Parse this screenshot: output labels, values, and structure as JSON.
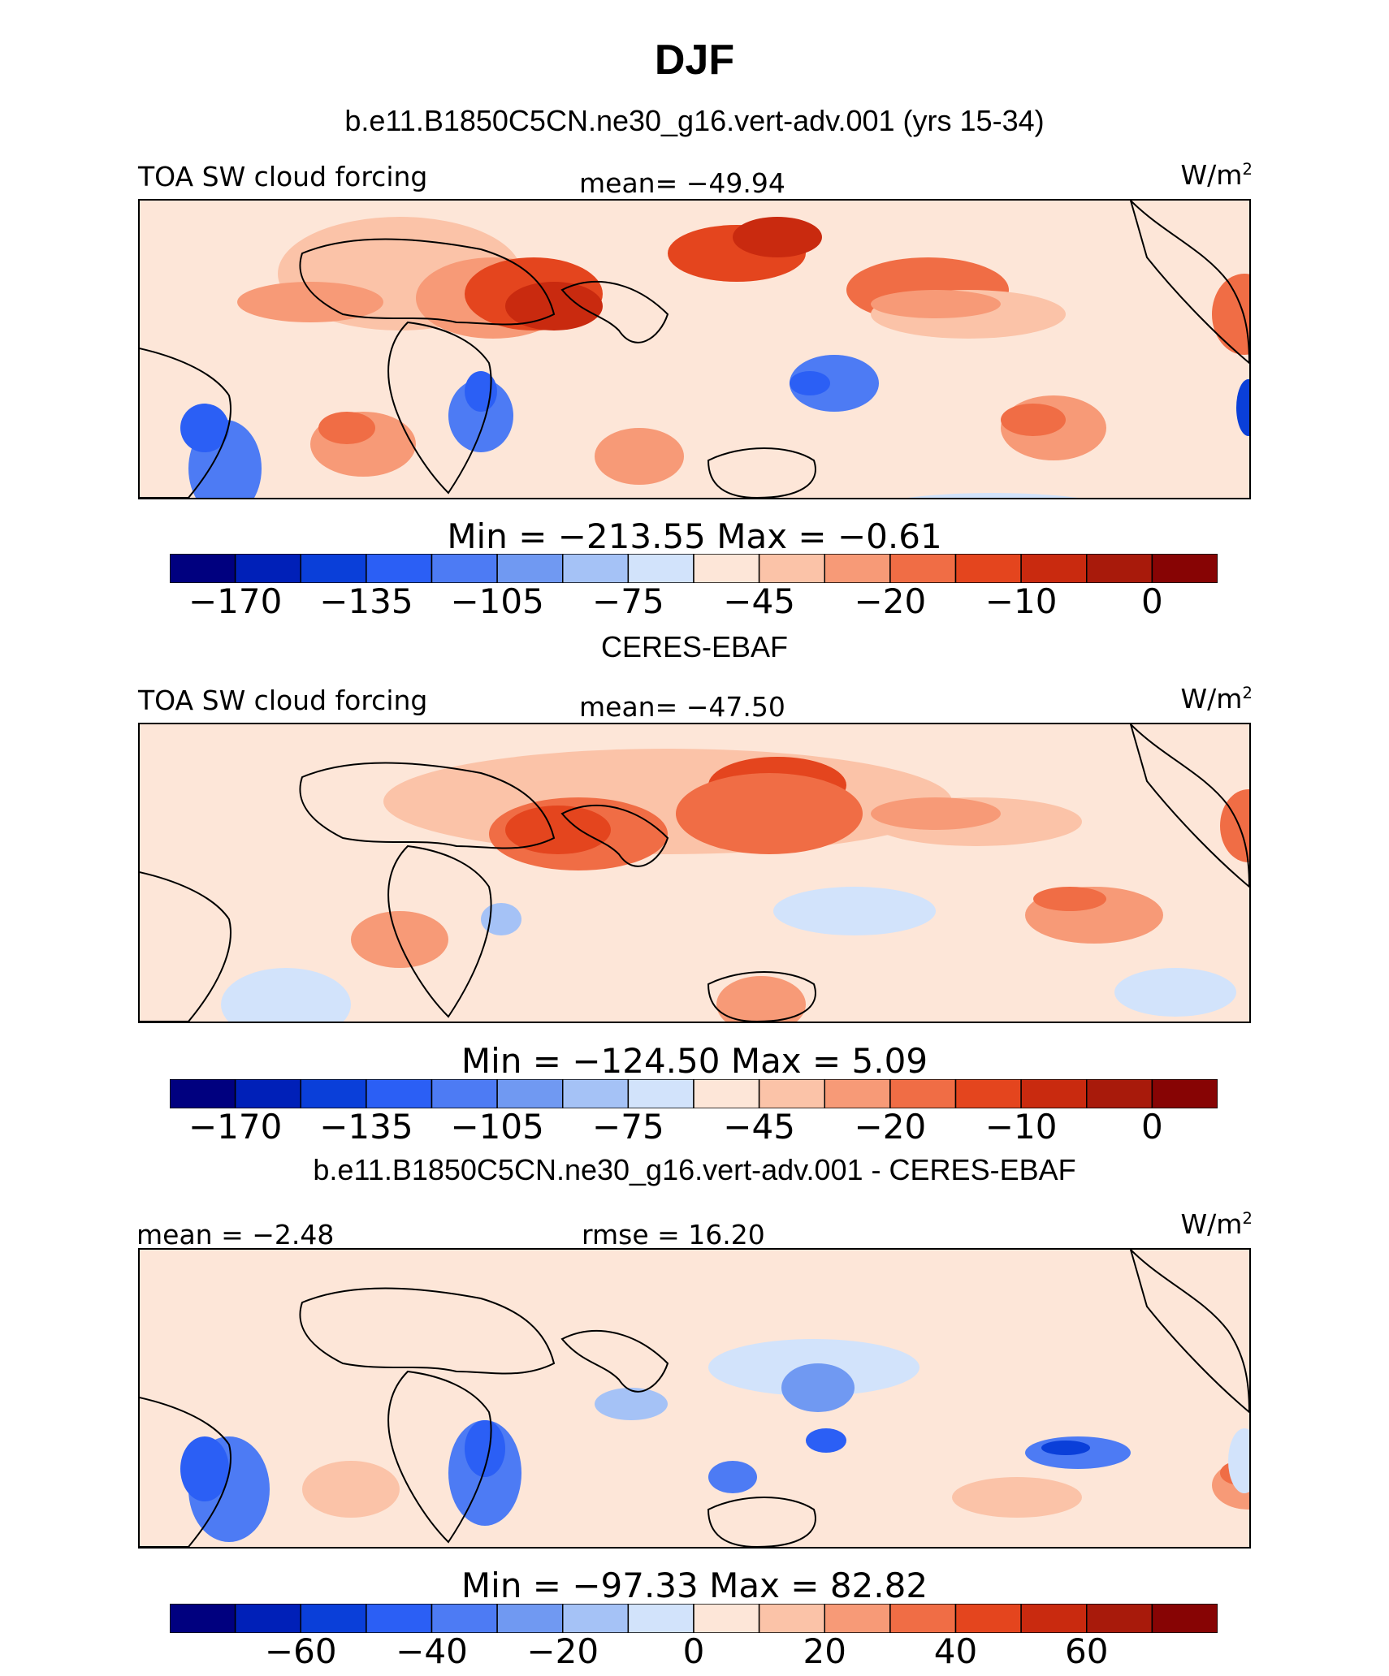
{
  "figure": {
    "title": "DJF"
  },
  "chart_data": [
    {
      "type": "heatmap",
      "title": "b.e11.B1850C5CN.ne30_g16.vert-adv.001 (yrs 15-34)",
      "left_label": "TOA SW cloud forcing",
      "center_label": "mean= −49.94",
      "units": "W/m",
      "units_exp": "2",
      "stats": "Min = −213.55 Max =  −0.61",
      "colorbar": {
        "colors": [
          "#00007f",
          "#0020b8",
          "#0a3fd9",
          "#2b5ff5",
          "#4d7bf4",
          "#7099f2",
          "#a5c2f6",
          "#d2e3fb",
          "#fde6d8",
          "#fbc3a8",
          "#f79a77",
          "#f06d45",
          "#e4451e",
          "#c92a0f",
          "#a81a0b",
          "#870404"
        ],
        "tick_labels": [
          "−170",
          "−135",
          "−105",
          "−75",
          "−45",
          "−20",
          "−10",
          "0"
        ]
      }
    },
    {
      "type": "heatmap",
      "title": "CERES-EBAF",
      "left_label": "TOA SW cloud forcing",
      "center_label": "mean= −47.50",
      "units": "W/m",
      "units_exp": "2",
      "stats": "Min = −124.50 Max =    5.09",
      "colorbar": {
        "colors": [
          "#00007f",
          "#0020b8",
          "#0a3fd9",
          "#2b5ff5",
          "#4d7bf4",
          "#7099f2",
          "#a5c2f6",
          "#d2e3fb",
          "#fde6d8",
          "#fbc3a8",
          "#f79a77",
          "#f06d45",
          "#e4451e",
          "#c92a0f",
          "#a81a0b",
          "#870404"
        ],
        "tick_labels": [
          "−170",
          "−135",
          "−105",
          "−75",
          "−45",
          "−20",
          "−10",
          "0"
        ]
      }
    },
    {
      "type": "heatmap",
      "title": "b.e11.B1850C5CN.ne30_g16.vert-adv.001 - CERES-EBAF",
      "left_label": "mean =  −2.48",
      "center_label": "rmse =  16.20",
      "units": "W/m",
      "units_exp": "2",
      "stats": "Min = −97.33 Max =  82.82",
      "colorbar": {
        "colors": [
          "#00007f",
          "#0020b8",
          "#0a3fd9",
          "#2b5ff5",
          "#4d7bf4",
          "#7099f2",
          "#a5c2f6",
          "#d2e3fb",
          "#fde6d8",
          "#fbc3a8",
          "#f79a77",
          "#f06d45",
          "#e4451e",
          "#c92a0f",
          "#a81a0b",
          "#870404"
        ],
        "tick_labels": [
          "−60",
          "−40",
          "−20",
          "0",
          "20",
          "40",
          "60"
        ]
      }
    }
  ]
}
